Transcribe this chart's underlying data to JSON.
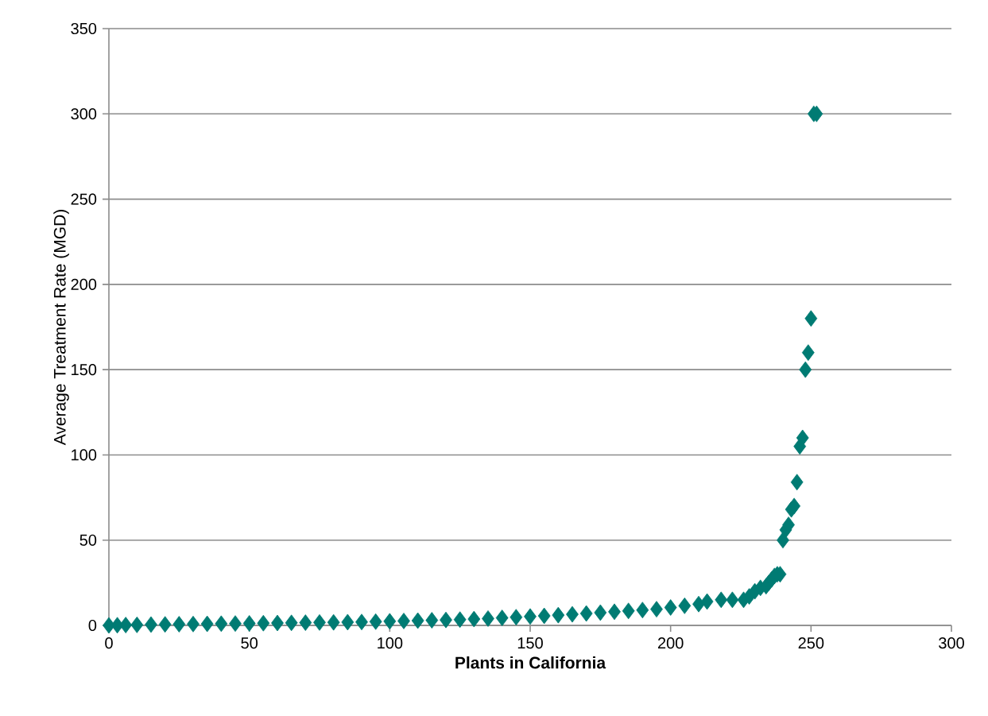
{
  "chart_data": {
    "type": "scatter",
    "xlabel": "Plants in California",
    "ylabel": "Average Treatment Rate (MGD)",
    "x": [
      0,
      3,
      6,
      10,
      15,
      20,
      25,
      30,
      35,
      40,
      45,
      50,
      55,
      60,
      65,
      70,
      75,
      80,
      85,
      90,
      95,
      100,
      105,
      110,
      115,
      120,
      125,
      130,
      135,
      140,
      145,
      150,
      155,
      160,
      165,
      170,
      175,
      180,
      185,
      190,
      195,
      200,
      205,
      210,
      213,
      218,
      222,
      226,
      228,
      230,
      232,
      234,
      235,
      236,
      237,
      238,
      239,
      240,
      241,
      242,
      243,
      244,
      245,
      246,
      247,
      248,
      249,
      250,
      251,
      252
    ],
    "values": [
      0,
      0.1,
      0.2,
      0.3,
      0.5,
      0.6,
      0.7,
      0.8,
      0.9,
      1,
      1.1,
      1.2,
      1.3,
      1.4,
      1.5,
      1.6,
      1.7,
      1.8,
      1.9,
      2,
      2.2,
      2.4,
      2.6,
      2.8,
      3,
      3.2,
      3.4,
      3.7,
      4,
      4.4,
      4.8,
      5.2,
      5.6,
      6,
      6.5,
      7,
      7.5,
      8,
      8.5,
      9,
      9.5,
      10.5,
      11.5,
      12.5,
      14,
      15,
      15,
      15,
      17,
      20,
      22,
      23,
      25,
      27,
      29,
      30,
      30,
      50,
      56,
      59,
      68,
      70,
      84,
      105,
      110,
      150,
      160,
      180,
      300,
      300
    ],
    "color": "#007b73",
    "marker": "diamond",
    "xlim": [
      0,
      300
    ],
    "ylim": [
      0,
      350
    ],
    "xticks": [
      0,
      50,
      100,
      150,
      200,
      250,
      300
    ],
    "yticks": [
      0,
      50,
      100,
      150,
      200,
      250,
      300,
      350
    ],
    "grid": "y"
  }
}
